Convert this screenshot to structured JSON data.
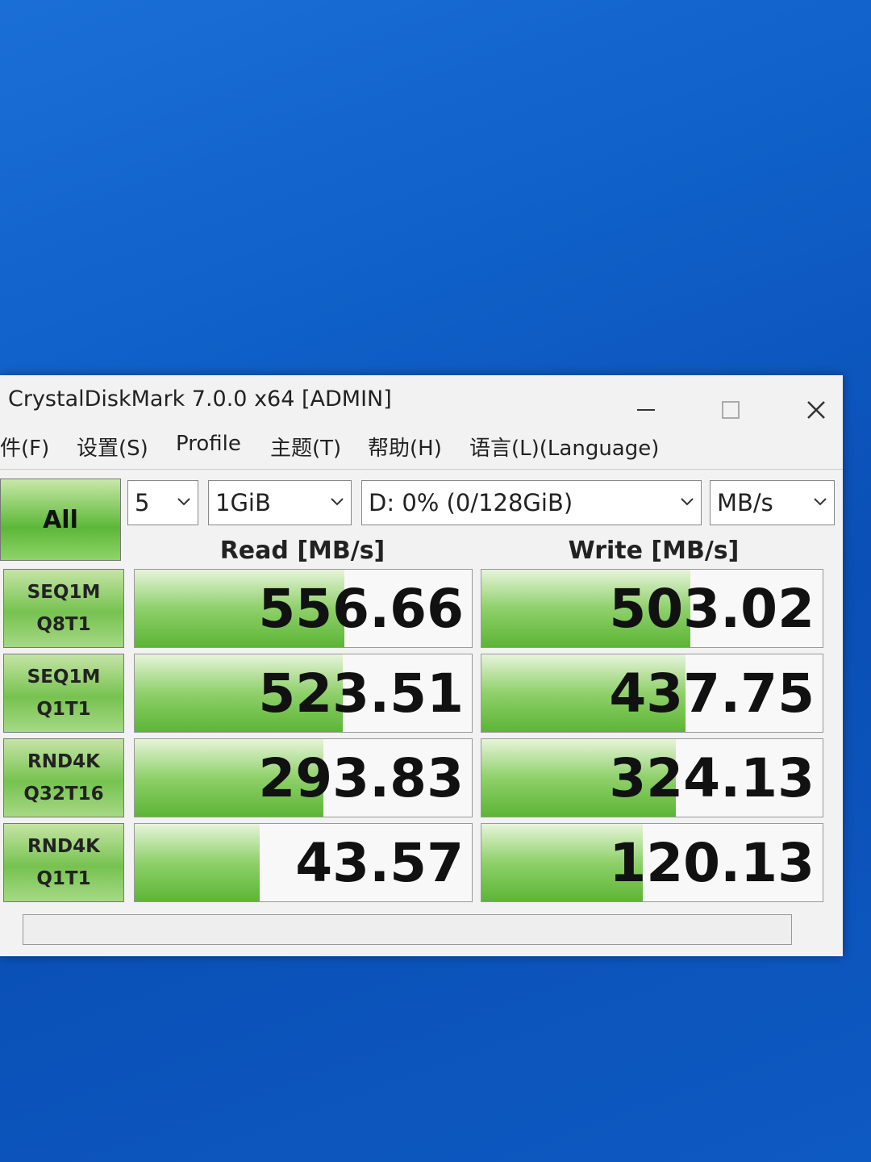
{
  "window": {
    "title": "CrystalDiskMark 7.0.0 x64 [ADMIN]"
  },
  "menu": [
    "件(F)",
    "设置(S)",
    "Profile",
    "主题(T)",
    "帮助(H)",
    "语言(L)(Language)"
  ],
  "controls": {
    "all_button": "All",
    "count": "5",
    "size": "1GiB",
    "drive": "D: 0% (0/128GiB)",
    "unit": "MB/s"
  },
  "headers": {
    "read": "Read [MB/s]",
    "write": "Write [MB/s]"
  },
  "rows": [
    {
      "label": [
        "SEQ1M",
        "Q8T1"
      ],
      "read": 556.66,
      "write": 503.02
    },
    {
      "label": [
        "SEQ1M",
        "Q1T1"
      ],
      "read": 523.51,
      "write": 437.75
    },
    {
      "label": [
        "RND4K",
        "Q32T16"
      ],
      "read": 293.83,
      "write": 324.13
    },
    {
      "label": [
        "RND4K",
        "Q1T1"
      ],
      "read": 43.57,
      "write": 120.13
    }
  ]
}
